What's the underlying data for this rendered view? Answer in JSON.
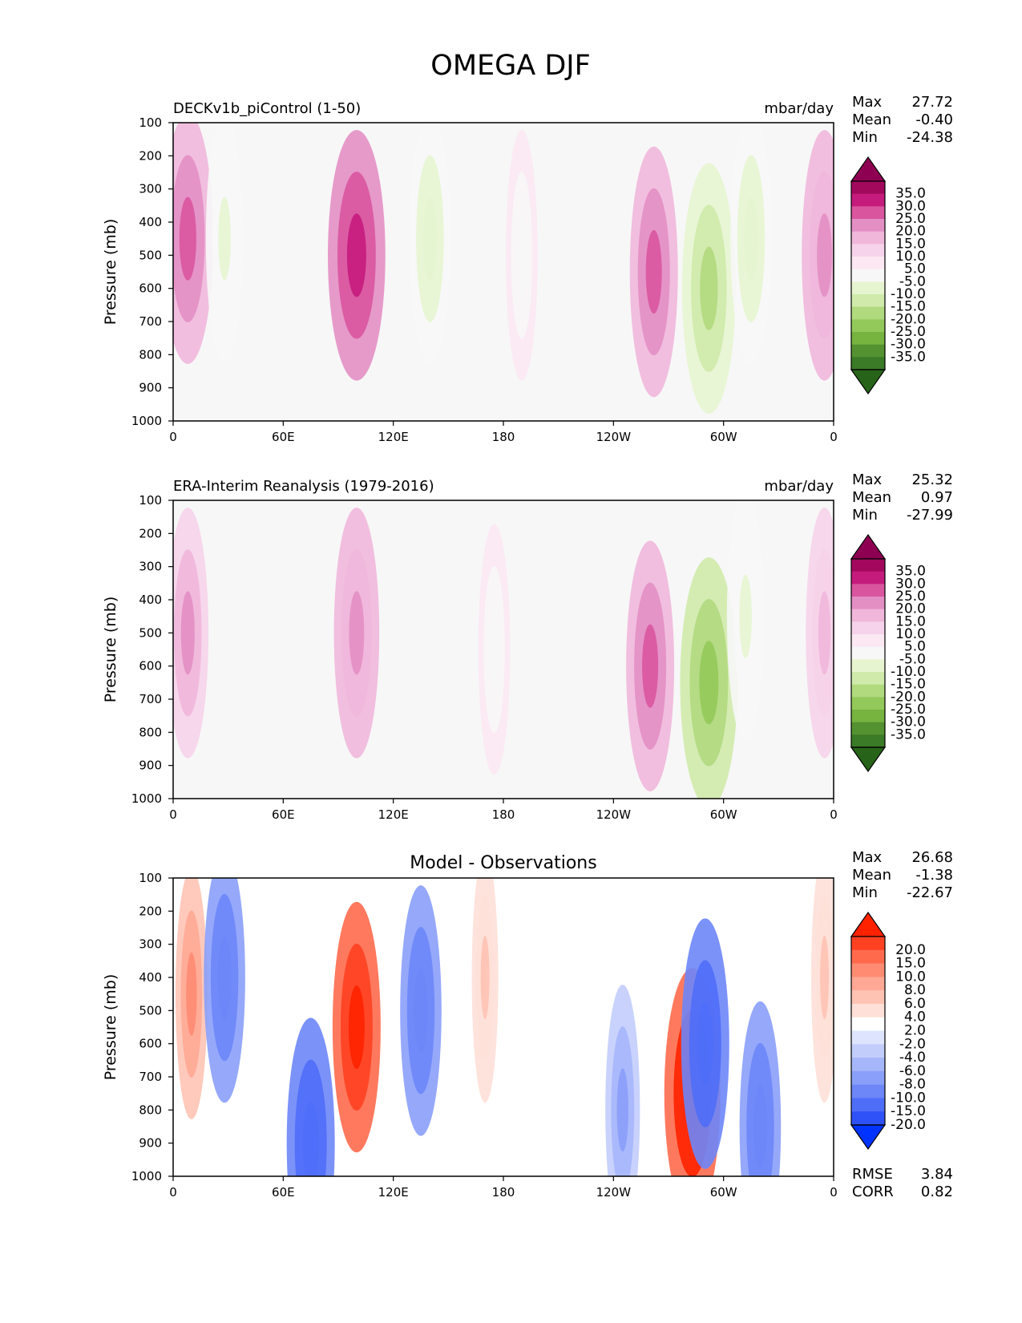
{
  "title": "OMEGA DJF",
  "chart_data": [
    {
      "type": "heatmap",
      "left_title": "DECKv1b_piControl (1-50)",
      "center_title": "",
      "units": "mbar/day",
      "ylabel": "Pressure (mb)",
      "xticks": [
        "0",
        "60E",
        "120E",
        "180",
        "120W",
        "60W",
        "0"
      ],
      "yticks": [
        "100",
        "200",
        "300",
        "400",
        "500",
        "600",
        "700",
        "800",
        "900",
        "1000"
      ],
      "ylim": [
        1000,
        100
      ],
      "xlim": [
        0,
        360
      ],
      "stats": [
        {
          "label": "Max",
          "value": "27.72"
        },
        {
          "label": "Mean",
          "value": "-0.40"
        },
        {
          "label": "Min",
          "value": "-24.38"
        }
      ],
      "colorbar": {
        "labels": [
          "35.0",
          "30.0",
          "25.0",
          "20.0",
          "15.0",
          "10.0",
          "5.0",
          "-5.0",
          "-10.0",
          "-15.0",
          "-20.0",
          "-25.0",
          "-30.0",
          "-35.0"
        ],
        "colors": [
          "#8e0152",
          "#a2095d",
          "#c51b7d",
          "#d9559e",
          "#e38fc4",
          "#f0b7db",
          "#f6d3ea",
          "#fbe8f3",
          "#f7f7f7",
          "#e6f5d0",
          "#cfeaaa",
          "#b1d97e",
          "#93c95a",
          "#76b33f",
          "#549130",
          "#3b7a26",
          "#276419"
        ]
      },
      "features": [
        {
          "lon": 8,
          "p": 450,
          "value": 22
        },
        {
          "lon": 28,
          "p": 450,
          "value": -12
        },
        {
          "lon": 100,
          "p": 500,
          "value": 27
        },
        {
          "lon": 140,
          "p": 450,
          "value": -15
        },
        {
          "lon": 190,
          "p": 500,
          "value": -8
        },
        {
          "lon": 262,
          "p": 550,
          "value": 20
        },
        {
          "lon": 292,
          "p": 600,
          "value": -24
        },
        {
          "lon": 315,
          "p": 450,
          "value": -15
        },
        {
          "lon": 355,
          "p": 500,
          "value": 18
        }
      ],
      "extra": []
    },
    {
      "type": "heatmap",
      "left_title": "ERA-Interim Reanalysis (1979-2016)",
      "center_title": "",
      "units": "mbar/day",
      "ylabel": "Pressure (mb)",
      "xticks": [
        "0",
        "60E",
        "120E",
        "180",
        "120W",
        "60W",
        "0"
      ],
      "yticks": [
        "100",
        "200",
        "300",
        "400",
        "500",
        "600",
        "700",
        "800",
        "900",
        "1000"
      ],
      "ylim": [
        1000,
        100
      ],
      "xlim": [
        0,
        360
      ],
      "stats": [
        {
          "label": "Max",
          "value": "25.32"
        },
        {
          "label": "Mean",
          "value": "0.97"
        },
        {
          "label": "Min",
          "value": "-27.99"
        }
      ],
      "colorbar": {
        "labels": [
          "35.0",
          "30.0",
          "25.0",
          "20.0",
          "15.0",
          "10.0",
          "5.0",
          "-5.0",
          "-10.0",
          "-15.0",
          "-20.0",
          "-25.0",
          "-30.0",
          "-35.0"
        ],
        "colors": [
          "#8e0152",
          "#a2095d",
          "#c51b7d",
          "#d9559e",
          "#e38fc4",
          "#f0b7db",
          "#f6d3ea",
          "#fbe8f3",
          "#f7f7f7",
          "#e6f5d0",
          "#cfeaaa",
          "#b1d97e",
          "#93c95a",
          "#76b33f",
          "#549130",
          "#3b7a26",
          "#276419"
        ]
      },
      "features": [
        {
          "lon": 8,
          "p": 500,
          "value": 15
        },
        {
          "lon": 100,
          "p": 500,
          "value": 18
        },
        {
          "lon": 175,
          "p": 550,
          "value": -8
        },
        {
          "lon": 260,
          "p": 600,
          "value": 20
        },
        {
          "lon": 292,
          "p": 650,
          "value": -27
        },
        {
          "lon": 312,
          "p": 450,
          "value": -12
        },
        {
          "lon": 355,
          "p": 500,
          "value": 12
        }
      ],
      "extra": []
    },
    {
      "type": "heatmap",
      "left_title": "",
      "center_title": "Model - Observations",
      "units": "",
      "ylabel": "Pressure (mb)",
      "xticks": [
        "0",
        "60E",
        "120E",
        "180",
        "120W",
        "60W",
        "0"
      ],
      "yticks": [
        "100",
        "200",
        "300",
        "400",
        "500",
        "600",
        "700",
        "800",
        "900",
        "1000"
      ],
      "ylim": [
        1000,
        100
      ],
      "xlim": [
        0,
        360
      ],
      "stats": [
        {
          "label": "Max",
          "value": "26.68"
        },
        {
          "label": "Mean",
          "value": "-1.38"
        },
        {
          "label": "Min",
          "value": "-22.67"
        }
      ],
      "colorbar": {
        "labels": [
          "20.0",
          "15.0",
          "10.0",
          "8.0",
          "6.0",
          "4.0",
          "2.0",
          "-2.0",
          "-4.0",
          "-6.0",
          "-8.0",
          "-10.0",
          "-15.0",
          "-20.0"
        ],
        "colors": [
          "#ff2200",
          "#ff4122",
          "#ff6a4d",
          "#ff8b73",
          "#ffa895",
          "#ffc3b4",
          "#fee0d8",
          "#ffffff",
          "#dee4fd",
          "#c2cdfc",
          "#a6b6fb",
          "#8a9ff9",
          "#6d86f8",
          "#4f6ef8",
          "#2f52f8",
          "#0033ff"
        ]
      },
      "features": [
        {
          "lon": 10,
          "p": 450,
          "value": 8
        },
        {
          "lon": 28,
          "p": 400,
          "value": -15
        },
        {
          "lon": 75,
          "p": 900,
          "value": -20
        },
        {
          "lon": 100,
          "p": 550,
          "value": 20
        },
        {
          "lon": 135,
          "p": 500,
          "value": -15
        },
        {
          "lon": 170,
          "p": 400,
          "value": 4
        },
        {
          "lon": 245,
          "p": 800,
          "value": -10
        },
        {
          "lon": 283,
          "p": 750,
          "value": 26
        },
        {
          "lon": 290,
          "p": 600,
          "value": -20
        },
        {
          "lon": 320,
          "p": 850,
          "value": -15
        },
        {
          "lon": 355,
          "p": 400,
          "value": 4
        }
      ],
      "extra": [
        {
          "label": "RMSE",
          "value": "3.84"
        },
        {
          "label": "CORR",
          "value": "0.82"
        }
      ]
    }
  ]
}
